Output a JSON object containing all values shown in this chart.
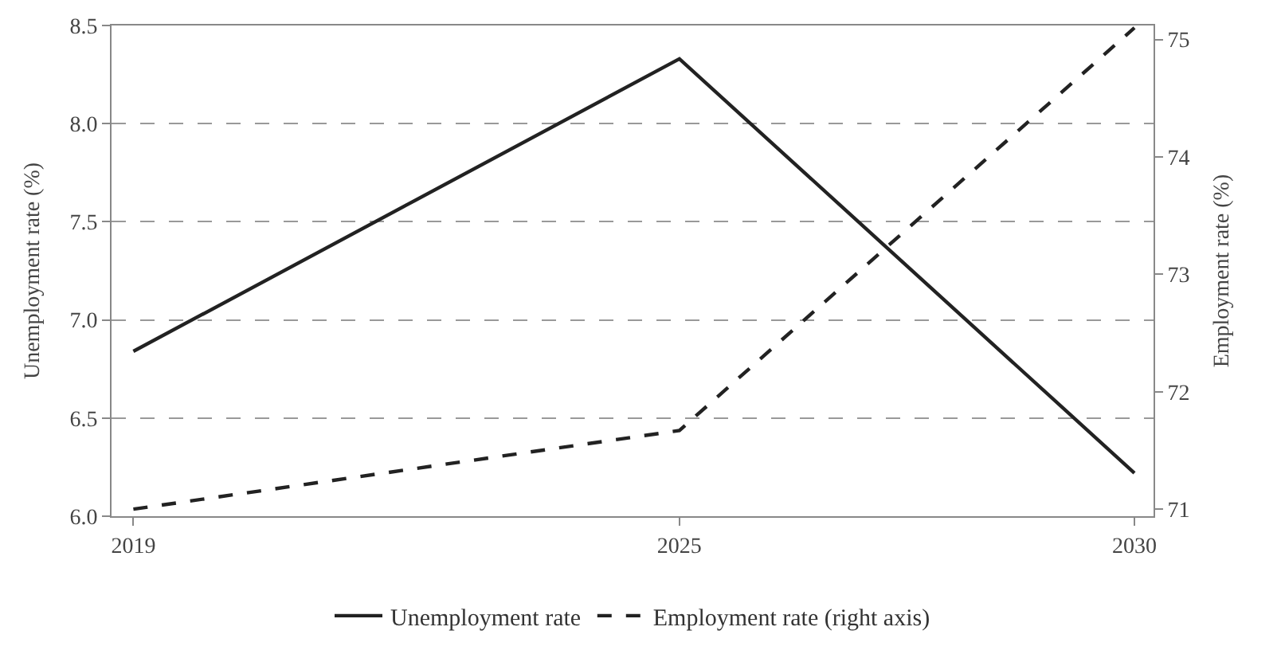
{
  "chart_data": {
    "type": "line",
    "ylabel": "Unemployment rate (%)",
    "y2label": "Employment rate (%)",
    "x": [
      2019,
      2025,
      2030
    ],
    "xlim": [
      2018.76,
      2030.21
    ],
    "xticks": [
      2019,
      2025,
      2030
    ],
    "ylim": [
      6.0,
      8.5
    ],
    "yticks": [
      {
        "value": 6.0,
        "label": "6.0"
      },
      {
        "value": 6.5,
        "label": "6.5"
      },
      {
        "value": 7.0,
        "label": "7.0"
      },
      {
        "value": 7.5,
        "label": "7.5"
      },
      {
        "value": 8.0,
        "label": "8.0"
      },
      {
        "value": 8.5,
        "label": "8.5"
      }
    ],
    "y2lim": [
      70.94,
      75.12
    ],
    "y2ticks": [
      71,
      72,
      73,
      74,
      75
    ],
    "series": [
      {
        "name": "Unemployment rate",
        "color": "#222222",
        "values": [
          6.84,
          8.33,
          6.22
        ],
        "line_style": "solid"
      },
      {
        "name": "Employment rate (right axis)",
        "color": "#222222",
        "values": [
          71.0,
          71.67,
          75.1
        ],
        "line_style": "dashed",
        "axis": "y2"
      }
    ],
    "grid": "y",
    "legend": "bottom",
    "marker": "none"
  }
}
